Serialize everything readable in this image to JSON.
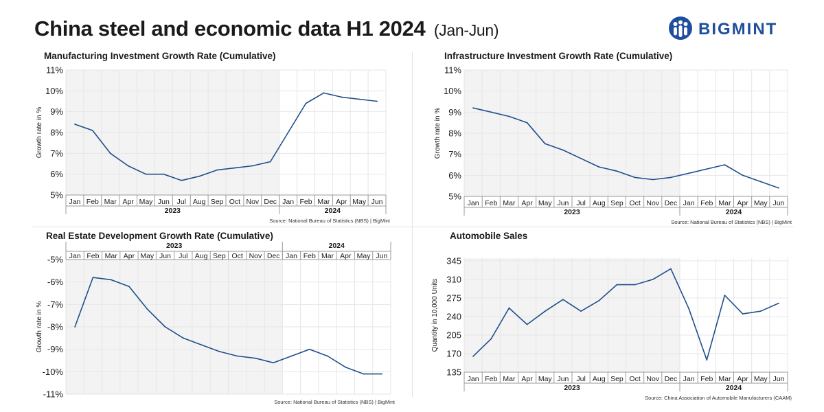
{
  "page": {
    "title": "China steel and economic data H1 2024",
    "subtitle": "(Jan-Jun)"
  },
  "logo": {
    "text": "BIGMINT"
  },
  "colors": {
    "line": "#1f4e8c",
    "shade": "#f3f3f3",
    "grid": "#e6e6e6",
    "brand": "#1f4e9e"
  },
  "chart_data": [
    {
      "id": "manufacturing",
      "type": "line",
      "title": "Manufacturing Investment Growth Rate (Cumulative)",
      "ylabel": "Growth rate in %",
      "ylim": [
        5,
        11
      ],
      "yticks": [
        "11%",
        "10%",
        "9%",
        "8%",
        "7%",
        "6%",
        "5%"
      ],
      "categories": [
        "Jan",
        "Feb",
        "Mar",
        "Apr",
        "May",
        "Jun",
        "Jul",
        "Aug",
        "Sep",
        "Oct",
        "Nov",
        "Dec",
        "Jan",
        "Feb",
        "Mar",
        "Apr",
        "May",
        "Jun"
      ],
      "values": [
        8.4,
        8.1,
        7.0,
        6.4,
        6.0,
        6.0,
        5.7,
        5.9,
        6.2,
        6.3,
        6.4,
        6.6,
        null,
        9.4,
        9.9,
        9.7,
        9.6,
        9.5
      ],
      "years": [
        "2023",
        "2024"
      ],
      "axis_position": "bottom",
      "source": "Source: National Bureau of Statistics (NBS) |  BigMint"
    },
    {
      "id": "infrastructure",
      "type": "line",
      "title": "Infrastructure Investment Growth Rate (Cumulative)",
      "ylabel": "Growth rate in %",
      "ylim": [
        5,
        11
      ],
      "yticks": [
        "11%",
        "10%",
        "9%",
        "8%",
        "7%",
        "6%",
        "5%"
      ],
      "categories": [
        "Jan",
        "Feb",
        "Mar",
        "Apr",
        "May",
        "Jun",
        "Jul",
        "Aug",
        "Sep",
        "Oct",
        "Nov",
        "Dec",
        "Jan",
        "Feb",
        "Mar",
        "Apr",
        "May",
        "Jun"
      ],
      "values": [
        9.2,
        9.0,
        8.8,
        8.5,
        7.5,
        7.2,
        6.8,
        6.4,
        6.2,
        5.9,
        5.8,
        5.9,
        6.1,
        6.3,
        6.5,
        6.0,
        5.7,
        5.4
      ],
      "years": [
        "2023",
        "2024"
      ],
      "axis_position": "bottom",
      "source": "Source: National Bureau of Statistics (NBS) |  BigMint"
    },
    {
      "id": "real-estate",
      "type": "line",
      "title": "Real Estate Development Growth Rate (Cumulative)",
      "ylabel": "Growth rate in %",
      "ylim": [
        -11,
        -5
      ],
      "yticks": [
        "-5%",
        "-6%",
        "-7%",
        "-8%",
        "-9%",
        "-10%",
        "-11%"
      ],
      "categories": [
        "Jan",
        "Feb",
        "Mar",
        "Apr",
        "May",
        "Jun",
        "Jul",
        "Aug",
        "Sep",
        "Oct",
        "Nov",
        "Dec",
        "Jan",
        "Feb",
        "Mar",
        "Apr",
        "May",
        "Jun"
      ],
      "values": [
        -8.0,
        -5.8,
        -5.9,
        -6.2,
        -7.2,
        -8.0,
        -8.5,
        -8.8,
        -9.1,
        -9.3,
        -9.4,
        -9.6,
        -9.3,
        -9.0,
        -9.3,
        -9.8,
        -10.1,
        -10.1
      ],
      "years": [
        "2023",
        "2024"
      ],
      "axis_position": "top",
      "source": "Source: National Bureau of Statistics (NBS) |  BigMint"
    },
    {
      "id": "automobile",
      "type": "line",
      "title": "Automobile Sales",
      "ylabel": "Quantity in 10,000 Units",
      "ylim": [
        135,
        350
      ],
      "yticks": [
        "345",
        "310",
        "275",
        "240",
        "205",
        "170",
        "135"
      ],
      "ytick_values": [
        345,
        310,
        275,
        240,
        205,
        170,
        135
      ],
      "categories": [
        "Jan",
        "Feb",
        "Mar",
        "Apr",
        "May",
        "Jun",
        "Jul",
        "Aug",
        "Sep",
        "Oct",
        "Nov",
        "Dec",
        "Jan",
        "Feb",
        "Mar",
        "Apr",
        "May",
        "Jun"
      ],
      "values": [
        165,
        198,
        256,
        225,
        250,
        272,
        250,
        270,
        300,
        300,
        310,
        330,
        255,
        158,
        280,
        245,
        250,
        265
      ],
      "years": [
        "2023",
        "2024"
      ],
      "axis_position": "bottom",
      "source": "Source: China Association of Automobile Manufacturers (CAAM)"
    }
  ]
}
